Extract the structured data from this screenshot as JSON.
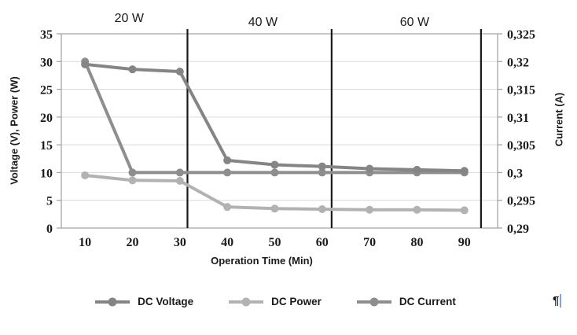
{
  "page": {
    "pilcrow": "¶"
  },
  "chart_data": {
    "type": "line",
    "title": "",
    "xlabel": "Operation Time (Min)",
    "ylabel_left": "Voltage (V), Power (W)",
    "ylabel_right": "Current (A)",
    "grid": true,
    "legend_position": "bottom",
    "x": [
      10,
      20,
      30,
      40,
      50,
      60,
      70,
      80,
      90
    ],
    "x_tick_labels": [
      "10",
      "20",
      "30",
      "40",
      "50",
      "60",
      "70",
      "80",
      "90"
    ],
    "x_range": [
      5,
      97
    ],
    "left_axis": {
      "min": 0,
      "max": 35,
      "tick_values": [
        0,
        5,
        10,
        15,
        20,
        25,
        30,
        35
      ],
      "tick_labels": [
        "0",
        "5",
        "10",
        "15",
        "20",
        "25",
        "30",
        "35"
      ]
    },
    "right_axis": {
      "min": 0.29,
      "max": 0.325,
      "tick_values": [
        0.29,
        0.295,
        0.3,
        0.305,
        0.31,
        0.315,
        0.32,
        0.325
      ],
      "tick_labels": [
        "0,29",
        "0,295",
        "0,3",
        "0,305",
        "0,31",
        "0,315",
        "0,32",
        "0,325"
      ]
    },
    "sections": [
      {
        "label": "20 W",
        "label_time": 19.3,
        "end_time": 31.6
      },
      {
        "label": "40 W",
        "label_time": 47.5,
        "end_time": 62.0
      },
      {
        "label": "60 W",
        "label_time": 79.5,
        "end_time": 93.5
      }
    ],
    "divider_color": "#1a1a1a",
    "gridline_color": "#d9d9d9",
    "axis_line_color": "#a6a6a6",
    "series": [
      {
        "name": "DC Voltage",
        "axis": "left",
        "color": "#858585",
        "values": [
          29.5,
          28.6,
          28.2,
          12.2,
          11.4,
          11.1,
          10.7,
          10.5,
          10.3
        ]
      },
      {
        "name": "DC Power",
        "axis": "left",
        "color": "#b2b2b2",
        "values": [
          9.5,
          8.6,
          8.5,
          3.8,
          3.5,
          3.4,
          3.3,
          3.3,
          3.2
        ]
      },
      {
        "name": "DC Current",
        "axis": "right",
        "color": "#8e8e8e",
        "values": [
          0.32,
          0.3,
          0.3,
          0.3,
          0.3,
          0.3,
          0.3,
          0.3,
          0.3
        ]
      }
    ]
  }
}
